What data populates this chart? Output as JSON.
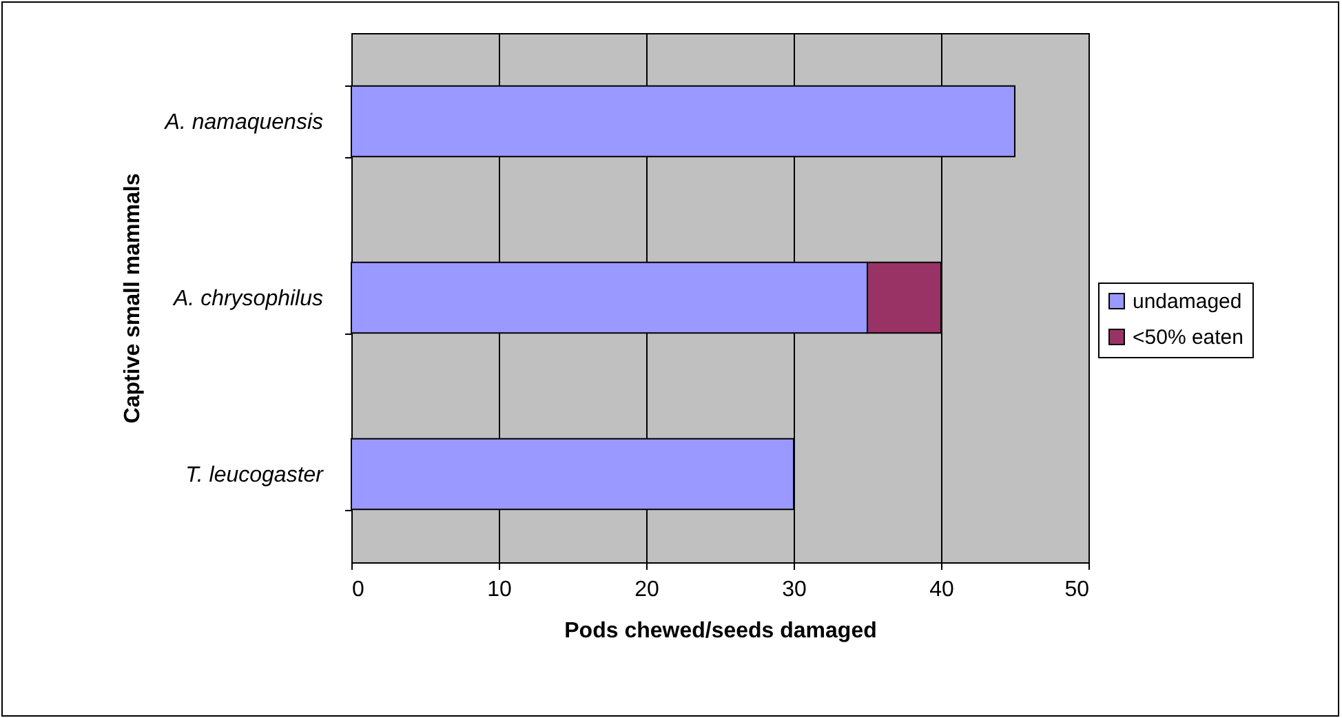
{
  "chart_data": {
    "type": "bar",
    "orientation": "horizontal",
    "stacked": true,
    "xlabel": "Pods chewed/seeds damaged",
    "ylabel": "Captive small mammals",
    "categories": [
      "A. namaquensis",
      "A. chrysophilus",
      "T. leucogaster"
    ],
    "series": [
      {
        "name": "undamaged",
        "color": "#9999ff",
        "values": [
          45,
          35,
          30
        ]
      },
      {
        "name": "<50% eaten",
        "color": "#993366",
        "values": [
          null,
          5,
          null
        ]
      }
    ],
    "xlim": [
      0,
      50
    ],
    "xticks": [
      0,
      10,
      20,
      30,
      40,
      50
    ],
    "grid": "x",
    "legend": "right"
  }
}
